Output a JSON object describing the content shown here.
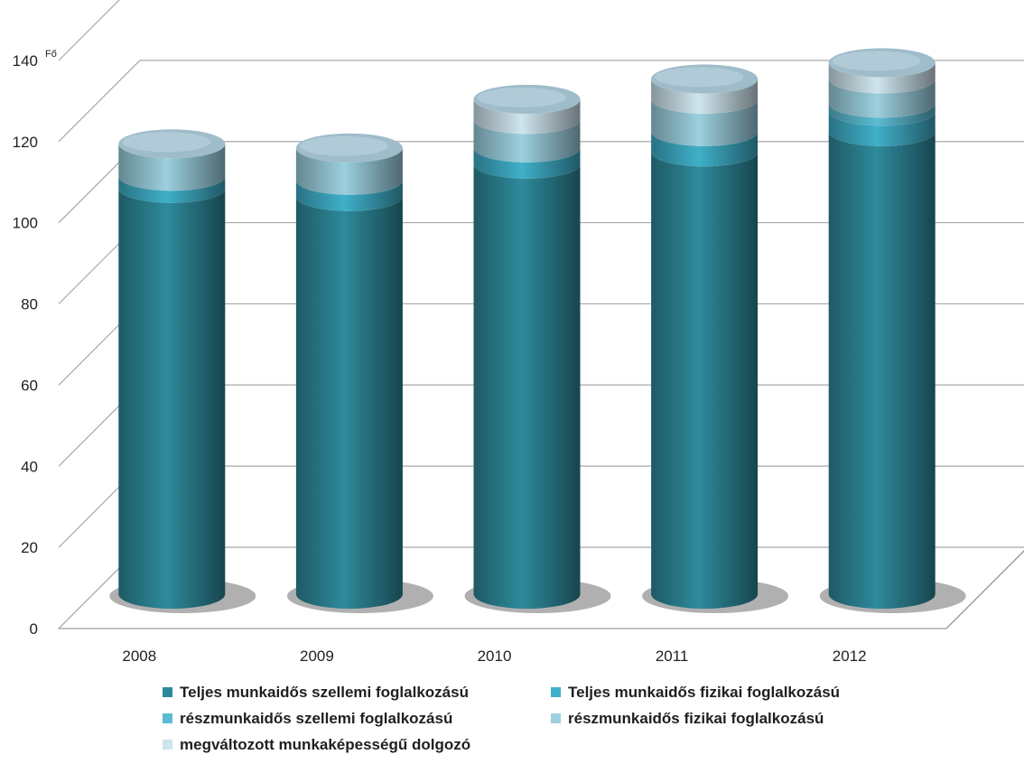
{
  "chart_data": {
    "type": "bar",
    "stacked": true,
    "three_d": true,
    "title": "",
    "xlabel": "",
    "ylabel": "",
    "unit": "Fő",
    "categories": [
      "2008",
      "2009",
      "2010",
      "2011",
      "2012"
    ],
    "ylim": [
      0,
      140
    ],
    "yticks": [
      "0",
      "20",
      "40",
      "60",
      "80",
      "100",
      "120",
      "140"
    ],
    "grid": true,
    "legend_position": "bottom",
    "series": [
      {
        "name": "Teljes munkaidős szellemi foglalkozású",
        "color": "#2e8a9b",
        "values": [
          100,
          98,
          106,
          109,
          114
        ]
      },
      {
        "name": "Teljes munkaidős fizikai foglalkozású",
        "color": "#3fb0c9",
        "values": [
          3,
          4,
          4,
          5,
          5
        ]
      },
      {
        "name": "részmunkaidős szellemi foglalkozású",
        "color": "#5cbcd2",
        "values": [
          0,
          0,
          0,
          0,
          2
        ]
      },
      {
        "name": "részmunkaidős fizikai foglalkozású",
        "color": "#9cd0df",
        "values": [
          8,
          8,
          7,
          8,
          6
        ]
      },
      {
        "name": "megváltozott munkaképességű dolgozó",
        "color": "#cfe5ee",
        "values": [
          0,
          0,
          5,
          5,
          4
        ]
      }
    ]
  }
}
